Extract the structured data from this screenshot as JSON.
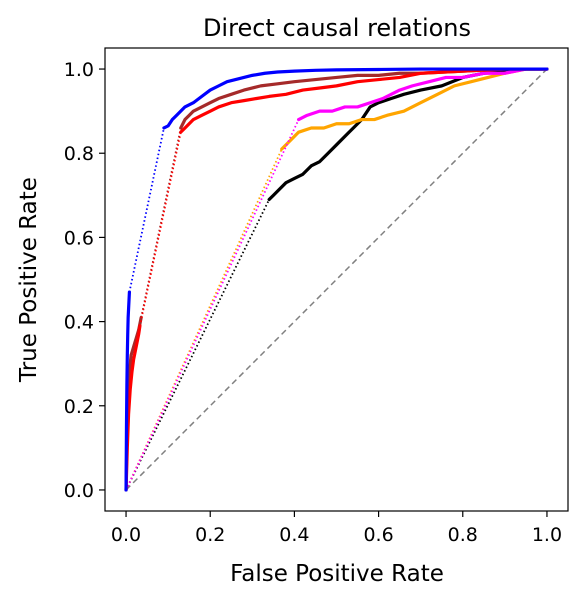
{
  "chart_data": {
    "type": "line",
    "title": "Direct causal relations",
    "xlabel": "False Positive Rate",
    "ylabel": "True Positive Rate",
    "xlim": [
      -0.05,
      1.05
    ],
    "ylim": [
      -0.05,
      1.05
    ],
    "x_ticks": [
      "0.0",
      "0.2",
      "0.4",
      "0.6",
      "0.8",
      "1.0"
    ],
    "y_ticks": [
      "0.0",
      "0.2",
      "0.4",
      "0.6",
      "0.8",
      "1.0"
    ],
    "grid": false,
    "legend": false,
    "reference_line": {
      "x": [
        0,
        1
      ],
      "y": [
        0,
        1
      ],
      "color": "#808080",
      "style": "dashed"
    },
    "series": [
      {
        "color": "#000000",
        "solid_start": 0,
        "dotted_to": 0.34,
        "x": [
          0.34,
          0.35,
          0.36,
          0.38,
          0.4,
          0.42,
          0.44,
          0.46,
          0.48,
          0.5,
          0.53,
          0.56,
          0.58,
          0.6,
          0.63,
          0.66,
          0.7,
          0.75,
          0.8,
          0.85,
          0.9,
          0.95,
          1.0
        ],
        "y": [
          0.69,
          0.7,
          0.71,
          0.73,
          0.74,
          0.75,
          0.77,
          0.78,
          0.8,
          0.82,
          0.85,
          0.88,
          0.91,
          0.92,
          0.93,
          0.94,
          0.95,
          0.96,
          0.98,
          0.99,
          0.995,
          1.0,
          1.0
        ]
      },
      {
        "color": "#ffa500",
        "solid_start": 0,
        "dotted_to": 0.37,
        "x": [
          0.37,
          0.39,
          0.41,
          0.44,
          0.47,
          0.5,
          0.53,
          0.56,
          0.59,
          0.62,
          0.66,
          0.7,
          0.74,
          0.78,
          0.82,
          0.86,
          0.9,
          0.95,
          1.0
        ],
        "y": [
          0.81,
          0.83,
          0.85,
          0.86,
          0.86,
          0.87,
          0.87,
          0.88,
          0.88,
          0.89,
          0.9,
          0.92,
          0.94,
          0.96,
          0.97,
          0.98,
          0.99,
          1.0,
          1.0
        ]
      },
      {
        "color": "#ff00ff",
        "solid_start": 0,
        "dotted_to": 0.41,
        "x": [
          0.41,
          0.43,
          0.46,
          0.49,
          0.52,
          0.55,
          0.58,
          0.61,
          0.63,
          0.65,
          0.68,
          0.72,
          0.76,
          0.8,
          0.85,
          0.9,
          0.95,
          1.0
        ],
        "y": [
          0.88,
          0.89,
          0.9,
          0.9,
          0.91,
          0.91,
          0.92,
          0.93,
          0.94,
          0.95,
          0.96,
          0.97,
          0.98,
          0.98,
          0.99,
          0.99,
          1.0,
          1.0
        ]
      },
      {
        "color": "#a52a2a",
        "solid_start": 0,
        "dotted_to": 0.13,
        "lead_x": [
          0,
          0.002,
          0.004,
          0.006,
          0.008,
          0.01,
          0.012,
          0.015,
          0.018,
          0.021,
          0.024,
          0.027,
          0.03,
          0.032,
          0.034,
          0.036
        ],
        "lead_y": [
          0,
          0.12,
          0.19,
          0.24,
          0.28,
          0.3,
          0.32,
          0.33,
          0.34,
          0.35,
          0.36,
          0.37,
          0.38,
          0.39,
          0.4,
          0.41
        ],
        "x": [
          0.13,
          0.14,
          0.15,
          0.16,
          0.17,
          0.18,
          0.2,
          0.22,
          0.25,
          0.28,
          0.32,
          0.36,
          0.4,
          0.45,
          0.5,
          0.55,
          0.6,
          0.65,
          0.7,
          0.8,
          0.9,
          1.0
        ],
        "y": [
          0.86,
          0.88,
          0.89,
          0.9,
          0.905,
          0.91,
          0.92,
          0.93,
          0.94,
          0.95,
          0.96,
          0.965,
          0.97,
          0.975,
          0.98,
          0.985,
          0.985,
          0.99,
          0.99,
          0.995,
          1.0,
          1.0
        ]
      },
      {
        "color": "#ff0000",
        "solid_start": 0,
        "dotted_to": 0.13,
        "lead_x": [
          0,
          0.003,
          0.006,
          0.01,
          0.014,
          0.018,
          0.022,
          0.026,
          0.03,
          0.033
        ],
        "lead_y": [
          0,
          0.1,
          0.18,
          0.24,
          0.28,
          0.31,
          0.33,
          0.35,
          0.37,
          0.39
        ],
        "x": [
          0.13,
          0.14,
          0.15,
          0.16,
          0.18,
          0.2,
          0.22,
          0.25,
          0.28,
          0.31,
          0.34,
          0.38,
          0.42,
          0.46,
          0.5,
          0.55,
          0.6,
          0.65,
          0.7,
          0.8,
          0.9,
          1.0
        ],
        "y": [
          0.85,
          0.86,
          0.87,
          0.88,
          0.89,
          0.9,
          0.91,
          0.92,
          0.925,
          0.93,
          0.935,
          0.94,
          0.95,
          0.955,
          0.96,
          0.97,
          0.975,
          0.98,
          0.99,
          0.995,
          1.0,
          1.0
        ]
      },
      {
        "color": "#0000ff",
        "solid_start": 0,
        "dotted_to": 0.09,
        "lead_x": [
          0,
          0.001,
          0.002,
          0.003,
          0.004,
          0.005,
          0.006,
          0.007,
          0.008
        ],
        "lead_y": [
          0,
          0.15,
          0.25,
          0.32,
          0.37,
          0.41,
          0.43,
          0.45,
          0.47
        ],
        "x": [
          0.09,
          0.1,
          0.11,
          0.12,
          0.13,
          0.14,
          0.16,
          0.18,
          0.2,
          0.22,
          0.24,
          0.26,
          0.28,
          0.3,
          0.33,
          0.36,
          0.4,
          0.45,
          0.5,
          0.6,
          0.7,
          0.8,
          0.9,
          1.0
        ],
        "y": [
          0.86,
          0.865,
          0.88,
          0.89,
          0.9,
          0.91,
          0.92,
          0.935,
          0.95,
          0.96,
          0.97,
          0.975,
          0.98,
          0.985,
          0.99,
          0.993,
          0.995,
          0.997,
          0.998,
          0.999,
          1.0,
          1.0,
          1.0,
          1.0
        ]
      }
    ]
  }
}
